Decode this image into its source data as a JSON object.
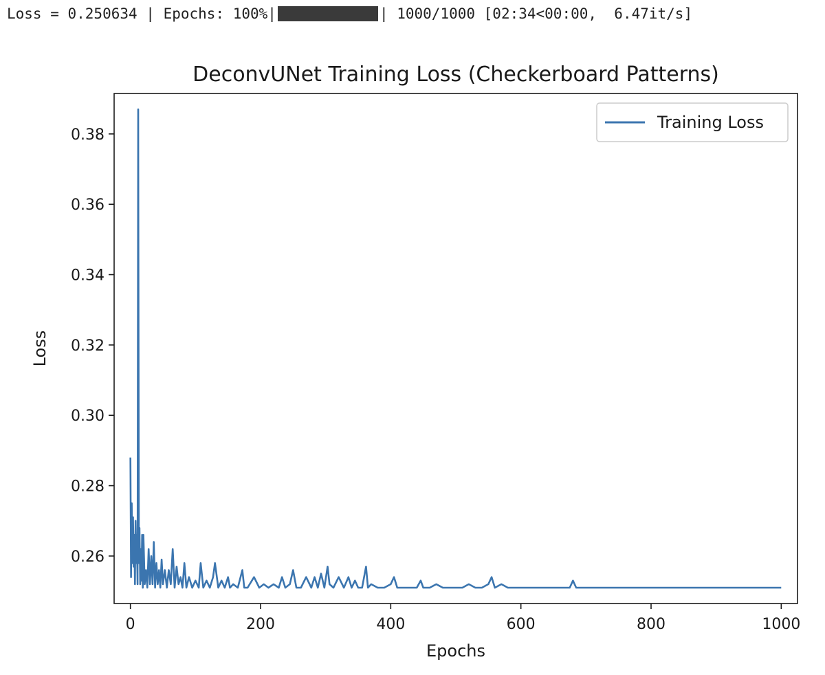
{
  "progress": {
    "prefix": "Loss = 0.250634 | Epochs: 100%|",
    "suffix": "| 1000/1000 [02:34<00:00,  6.47it/s]",
    "fraction": 1.0,
    "bar_color": "#3a3a3a"
  },
  "chart_data": {
    "type": "line",
    "title": "DeconvUNet Training Loss (Checkerboard Patterns)",
    "xlabel": "Epochs",
    "ylabel": "Loss",
    "xlim": [
      -25,
      1025
    ],
    "ylim": [
      0.2465,
      0.3915
    ],
    "xticks": [
      0,
      200,
      400,
      600,
      800,
      1000
    ],
    "xtick_labels": [
      "0",
      "200",
      "400",
      "600",
      "800",
      "1000"
    ],
    "yticks": [
      0.26,
      0.28,
      0.3,
      0.32,
      0.34,
      0.36,
      0.38
    ],
    "ytick_labels": [
      "0.26",
      "0.28",
      "0.30",
      "0.32",
      "0.34",
      "0.36",
      "0.38"
    ],
    "grid": false,
    "legend": {
      "entries": [
        "Training Loss"
      ],
      "placement": "top-right"
    },
    "line_color": "#3b75af",
    "series": [
      {
        "name": "Training Loss",
        "x": [
          0,
          1,
          2,
          3,
          4,
          5,
          6,
          7,
          8,
          9,
          10,
          11,
          12,
          13,
          14,
          15,
          16,
          17,
          18,
          19,
          20,
          22,
          24,
          26,
          28,
          30,
          32,
          34,
          36,
          38,
          40,
          42,
          44,
          46,
          48,
          50,
          53,
          56,
          59,
          62,
          65,
          68,
          71,
          74,
          77,
          80,
          83,
          86,
          90,
          95,
          100,
          105,
          108,
          112,
          117,
          122,
          127,
          130,
          135,
          140,
          145,
          150,
          153,
          158,
          165,
          172,
          175,
          180,
          190,
          198,
          205,
          212,
          220,
          228,
          233,
          238,
          245,
          250,
          255,
          262,
          270,
          278,
          283,
          288,
          293,
          298,
          303,
          306,
          312,
          320,
          328,
          335,
          340,
          345,
          350,
          356,
          362,
          365,
          370,
          380,
          390,
          400,
          405,
          410,
          420,
          430,
          440,
          446,
          450,
          460,
          470,
          480,
          490,
          500,
          510,
          520,
          530,
          540,
          550,
          555,
          560,
          570,
          580,
          590,
          600,
          620,
          640,
          660,
          675,
          680,
          685,
          700,
          720,
          740,
          760,
          780,
          800,
          820,
          840,
          860,
          880,
          900,
          920,
          940,
          960,
          980,
          995,
          1000
        ],
        "values": [
          0.288,
          0.254,
          0.275,
          0.258,
          0.271,
          0.257,
          0.266,
          0.252,
          0.27,
          0.258,
          0.266,
          0.252,
          0.387,
          0.258,
          0.268,
          0.252,
          0.262,
          0.253,
          0.266,
          0.251,
          0.266,
          0.252,
          0.256,
          0.251,
          0.262,
          0.252,
          0.26,
          0.252,
          0.264,
          0.251,
          0.258,
          0.252,
          0.256,
          0.251,
          0.259,
          0.252,
          0.256,
          0.251,
          0.256,
          0.252,
          0.262,
          0.251,
          0.257,
          0.252,
          0.254,
          0.251,
          0.258,
          0.251,
          0.254,
          0.251,
          0.253,
          0.251,
          0.258,
          0.251,
          0.253,
          0.251,
          0.254,
          0.258,
          0.251,
          0.253,
          0.251,
          0.254,
          0.251,
          0.252,
          0.251,
          0.256,
          0.251,
          0.251,
          0.254,
          0.251,
          0.252,
          0.251,
          0.252,
          0.251,
          0.254,
          0.251,
          0.252,
          0.256,
          0.251,
          0.251,
          0.254,
          0.251,
          0.254,
          0.251,
          0.255,
          0.251,
          0.257,
          0.252,
          0.251,
          0.254,
          0.251,
          0.254,
          0.251,
          0.253,
          0.251,
          0.251,
          0.257,
          0.251,
          0.252,
          0.251,
          0.251,
          0.252,
          0.254,
          0.251,
          0.251,
          0.251,
          0.251,
          0.253,
          0.251,
          0.251,
          0.252,
          0.251,
          0.251,
          0.251,
          0.251,
          0.252,
          0.251,
          0.251,
          0.252,
          0.254,
          0.251,
          0.252,
          0.251,
          0.251,
          0.251,
          0.251,
          0.251,
          0.251,
          0.251,
          0.253,
          0.251,
          0.251,
          0.251,
          0.251,
          0.251,
          0.251,
          0.251,
          0.251,
          0.251,
          0.251,
          0.251,
          0.251,
          0.251,
          0.251,
          0.251,
          0.251,
          0.251,
          0.251
        ]
      }
    ]
  }
}
